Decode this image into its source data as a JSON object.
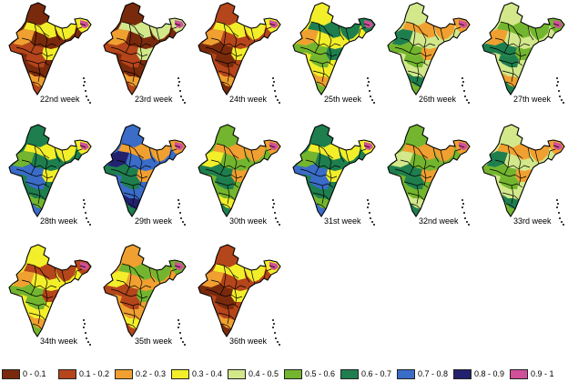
{
  "maps": [
    {
      "label": "22nd week",
      "dominant": "0 - 0.1",
      "mix": [
        "0 - 0.1",
        "0.1 - 0.2",
        "0.2 - 0.3",
        "0.3 - 0.4"
      ]
    },
    {
      "label": "23rd week",
      "dominant": "0 - 0.1",
      "mix": [
        "0 - 0.1",
        "0.1 - 0.2",
        "0.2 - 0.3",
        "0.4 - 0.5"
      ]
    },
    {
      "label": "24th week",
      "dominant": "0.1 - 0.2",
      "mix": [
        "0.1 - 0.2",
        "0 - 0.1",
        "0.2 - 0.3",
        "0.3 - 0.4"
      ]
    },
    {
      "label": "25th week",
      "dominant": "0.3 - 0.4",
      "mix": [
        "0.3 - 0.4",
        "0.5 - 0.6",
        "0.2 - 0.3",
        "0.6 - 0.7"
      ]
    },
    {
      "label": "26th week",
      "dominant": "0.4 - 0.5",
      "mix": [
        "0.4 - 0.5",
        "0.5 - 0.6",
        "0.6 - 0.7",
        "0.2 - 0.3"
      ]
    },
    {
      "label": "27th week",
      "dominant": "0.4 - 0.5",
      "mix": [
        "0.4 - 0.5",
        "0.6 - 0.7",
        "0.2 - 0.3",
        "0.5 - 0.6"
      ]
    },
    {
      "label": "28th week",
      "dominant": "0.6 - 0.7",
      "mix": [
        "0.6 - 0.7",
        "0.7 - 0.8",
        "0.5 - 0.6",
        "0.3 - 0.4"
      ]
    },
    {
      "label": "29th week",
      "dominant": "0.7 - 0.8",
      "mix": [
        "0.7 - 0.8",
        "0.6 - 0.7",
        "0.8 - 0.9",
        "0.2 - 0.3"
      ]
    },
    {
      "label": "30th week",
      "dominant": "0.5 - 0.6",
      "mix": [
        "0.5 - 0.6",
        "0.6 - 0.7",
        "0.3 - 0.4",
        "0.2 - 0.3"
      ]
    },
    {
      "label": "31st week",
      "dominant": "0.6 - 0.7",
      "mix": [
        "0.6 - 0.7",
        "0.7 - 0.8",
        "0.5 - 0.6",
        "0.3 - 0.4"
      ]
    },
    {
      "label": "32nd week",
      "dominant": "0.5 - 0.6",
      "mix": [
        "0.5 - 0.6",
        "0.6 - 0.7",
        "0.4 - 0.5",
        "0.2 - 0.3"
      ]
    },
    {
      "label": "33rd week",
      "dominant": "0.4 - 0.5",
      "mix": [
        "0.4 - 0.5",
        "0.5 - 0.6",
        "0.6 - 0.7",
        "0.2 - 0.3"
      ]
    },
    {
      "label": "34th week",
      "dominant": "0.3 - 0.4",
      "mix": [
        "0.3 - 0.4",
        "0.5 - 0.6",
        "0.2 - 0.3",
        "0.1 - 0.2"
      ]
    },
    {
      "label": "35th week",
      "dominant": "0.2 - 0.3",
      "mix": [
        "0.2 - 0.3",
        "0.1 - 0.2",
        "0.3 - 0.4",
        "0.5 - 0.6"
      ]
    },
    {
      "label": "36th week",
      "dominant": "0.1 - 0.2",
      "mix": [
        "0.1 - 0.2",
        "0 - 0.1",
        "0.2 - 0.3",
        "0.3 - 0.4"
      ]
    }
  ],
  "legend": [
    {
      "label": "0 - 0.1",
      "color": "#7a2a0c"
    },
    {
      "label": "0.1 - 0.2",
      "color": "#b5451b"
    },
    {
      "label": "0.2 - 0.3",
      "color": "#f0a030"
    },
    {
      "label": "0.3 - 0.4",
      "color": "#f2ee2a"
    },
    {
      "label": "0.4 - 0.5",
      "color": "#d2e88a"
    },
    {
      "label": "0.5 - 0.6",
      "color": "#73b52e"
    },
    {
      "label": "0.6 - 0.7",
      "color": "#1e7e4e"
    },
    {
      "label": "0.7 - 0.8",
      "color": "#3a6cc8"
    },
    {
      "label": "0.8 - 0.9",
      "color": "#22226e"
    },
    {
      "label": "0.9 - 1",
      "color": "#d0509a"
    }
  ]
}
